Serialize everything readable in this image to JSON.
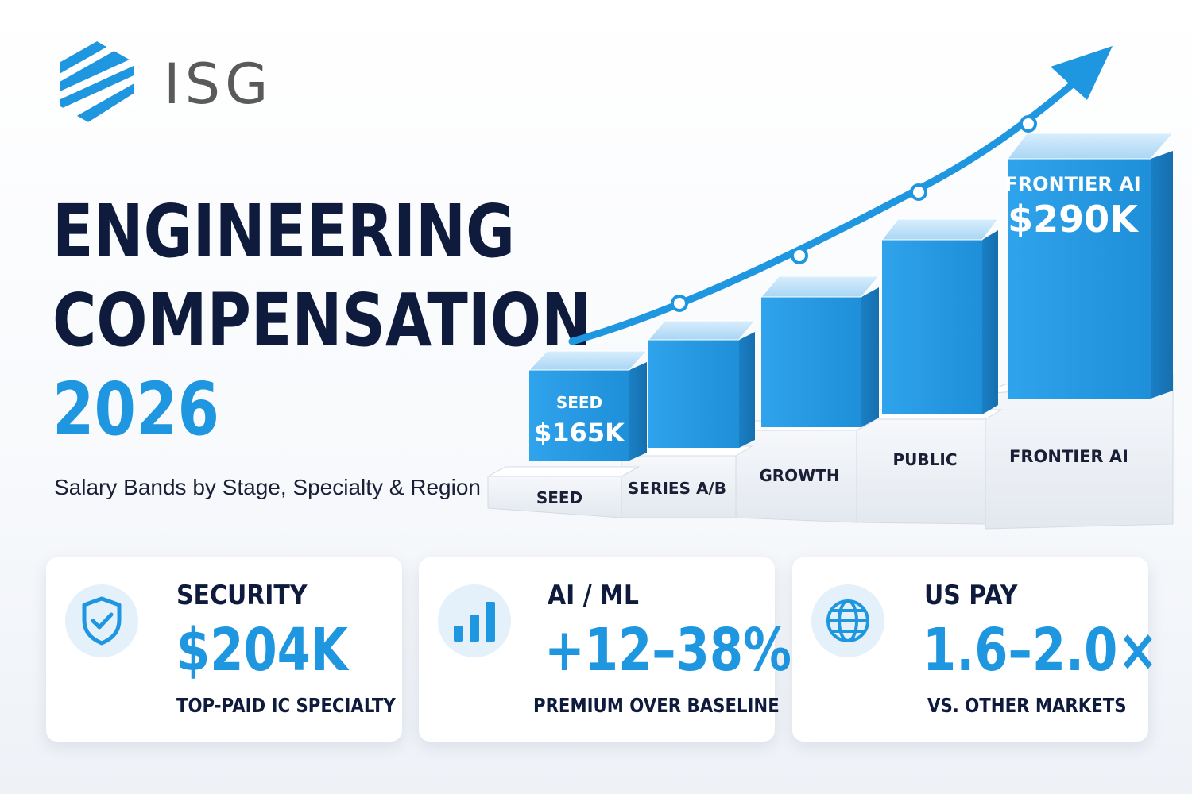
{
  "brand": {
    "name": "ISG",
    "accent": "#1e96e0",
    "dark": "#0f1b3d"
  },
  "headline": {
    "line1": "ENGINEERING",
    "line2": "COMPENSATION",
    "year": "2026",
    "subtitle": "Salary Bands by Stage, Specialty & Region"
  },
  "chart_data": {
    "type": "bar",
    "categories": [
      "SEED",
      "SERIES A/B",
      "GROWTH",
      "PUBLIC",
      "FRONTIER AI"
    ],
    "callouts": [
      {
        "category": "SEED",
        "label": "SEED",
        "value": "$165K"
      },
      {
        "category": "FRONTIER AI",
        "label": "FRONTIER AI",
        "value": "$290K"
      }
    ],
    "trend": "rising arrow",
    "colors": {
      "bar": "#2a9be5",
      "pedestal": "#eef1f6"
    }
  },
  "cards": [
    {
      "icon": "shield-check-icon",
      "label": "SECURITY",
      "value": "$204K",
      "caption": "TOP-PAID IC SPECIALTY"
    },
    {
      "icon": "bar-chart-icon",
      "label": "AI / ML",
      "value": "+12–38%",
      "caption": "PREMIUM OVER BASELINE"
    },
    {
      "icon": "globe-icon",
      "label": "US PAY",
      "value": "1.6–2.0×",
      "caption": "VS. OTHER MARKETS"
    }
  ]
}
